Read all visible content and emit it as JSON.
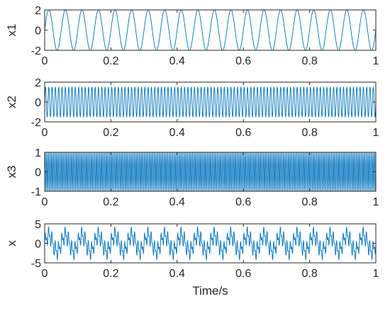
{
  "chart_data": [
    {
      "type": "line",
      "ylabel": "x1",
      "xlabel": "",
      "xlim": [
        0,
        1
      ],
      "ylim": [
        -2,
        2
      ],
      "xticks": [
        0,
        0.2,
        0.4,
        0.6,
        0.8,
        1
      ],
      "xtick_labels": [
        "0",
        "0.2",
        "0.4",
        "0.6",
        "0.8",
        "1"
      ],
      "yticks": [
        -2,
        0,
        2
      ],
      "ytick_labels": [
        "-2",
        "0",
        "2"
      ],
      "color": "#0072BD",
      "signal": {
        "components": [
          {
            "amplitude": 2,
            "frequency_hz": 20
          }
        ]
      }
    },
    {
      "type": "line",
      "ylabel": "x2",
      "xlabel": "",
      "xlim": [
        0,
        1
      ],
      "ylim": [
        -2,
        2
      ],
      "xticks": [
        0,
        0.2,
        0.4,
        0.6,
        0.8,
        1
      ],
      "xtick_labels": [
        "0",
        "0.2",
        "0.4",
        "0.6",
        "0.8",
        "1"
      ],
      "yticks": [
        -2,
        0,
        2
      ],
      "ytick_labels": [
        "-2",
        "0",
        "2"
      ],
      "color": "#0072BD",
      "signal": {
        "components": [
          {
            "amplitude": 1.5,
            "frequency_hz": 100
          }
        ]
      }
    },
    {
      "type": "line",
      "ylabel": "x3",
      "xlabel": "",
      "xlim": [
        0,
        1
      ],
      "ylim": [
        -1,
        1
      ],
      "xticks": [
        0,
        0.2,
        0.4,
        0.6,
        0.8,
        1
      ],
      "xtick_labels": [
        "0",
        "0.2",
        "0.4",
        "0.6",
        "0.8",
        "1"
      ],
      "yticks": [
        -1,
        0,
        1
      ],
      "ytick_labels": [
        "-1",
        "0",
        "1"
      ],
      "color": "#0072BD",
      "signal": {
        "components": [
          {
            "amplitude": 1,
            "frequency_hz": 200
          }
        ]
      }
    },
    {
      "type": "line",
      "ylabel": "x",
      "xlabel": "Time/s",
      "xlim": [
        0,
        1
      ],
      "ylim": [
        -5,
        5
      ],
      "xticks": [
        0,
        0.2,
        0.4,
        0.6,
        0.8,
        1
      ],
      "xtick_labels": [
        "0",
        "0.2",
        "0.4",
        "0.6",
        "0.8",
        "1"
      ],
      "yticks": [
        -5,
        0,
        5
      ],
      "ytick_labels": [
        "-5",
        "0",
        "5"
      ],
      "color": "#0072BD",
      "signal": {
        "components": [
          {
            "amplitude": 2,
            "frequency_hz": 20
          },
          {
            "amplitude": 1.5,
            "frequency_hz": 100
          },
          {
            "amplitude": 1,
            "frequency_hz": 200
          }
        ]
      }
    }
  ]
}
